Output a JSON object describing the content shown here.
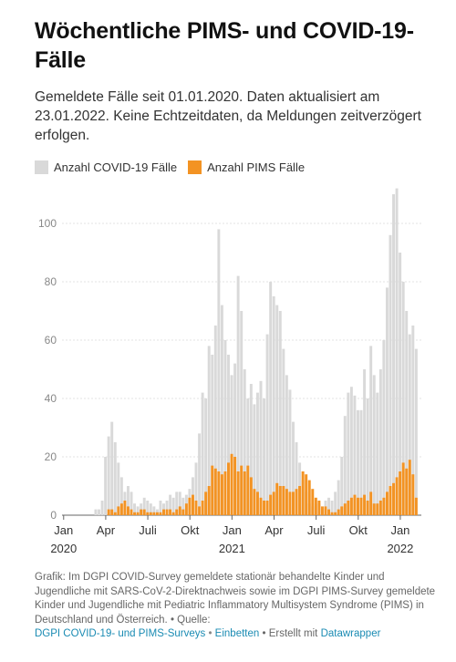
{
  "header": {
    "title": "Wöchentliche PIMS- und COVID-19-Fälle",
    "subtitle": "Gemeldete Fälle seit 01.01.2020. Daten aktualisiert am 23.01.2022. Keine Echtzeitdaten, da Meldungen zeitverzögert erfolgen."
  },
  "legend": [
    {
      "label": "Anzahl COVID-19 Fälle",
      "color": "#d9d9d9"
    },
    {
      "label": "Anzahl PIMS Fälle",
      "color": "#f39323"
    }
  ],
  "footer": {
    "text": "Grafik: Im DGPI COVID-Survey gemeldete stationär behandelte Kinder und Jugendliche mit SARS-CoV-2-Direktnachweis sowie im DGPI PIMS-Survey gemeldete Kinder und Jugendliche mit Pediatric Inflammatory Multisystem Syndrome (PIMS) in Deutschland und Österreich. • Quelle:",
    "source_link": "DGPI COVID-19- und PIMS-Surveys",
    "separator1": " • ",
    "embed_link": "Einbetten",
    "created_text": " • Erstellt mit ",
    "datawrapper_link": "Datawrapper"
  },
  "chart_data": {
    "type": "bar",
    "x_unit": "week",
    "x_start": "2020-01-06",
    "ylim": [
      0,
      110
    ],
    "yticks": [
      0,
      20,
      40,
      60,
      80,
      100
    ],
    "xticks": [
      {
        "label": "Jan",
        "year": "2020",
        "week": 0
      },
      {
        "label": "Apr",
        "year": "",
        "week": 13
      },
      {
        "label": "Juli",
        "year": "",
        "week": 26
      },
      {
        "label": "Okt",
        "year": "",
        "week": 39
      },
      {
        "label": "Jan",
        "year": "2021",
        "week": 52
      },
      {
        "label": "Apr",
        "year": "",
        "week": 65
      },
      {
        "label": "Juli",
        "year": "",
        "week": 78
      },
      {
        "label": "Okt",
        "year": "",
        "week": 91
      },
      {
        "label": "Jan",
        "year": "2022",
        "week": 104
      }
    ],
    "grid": true,
    "series": [
      {
        "name": "Anzahl COVID-19 Fälle",
        "color": "#d9d9d9",
        "values": [
          0,
          0,
          0,
          0,
          0,
          0,
          0,
          0,
          0,
          0,
          2,
          2,
          5,
          20,
          27,
          32,
          25,
          18,
          13,
          8,
          10,
          8,
          4,
          3,
          4,
          6,
          5,
          4,
          3,
          2,
          5,
          4,
          5,
          7,
          6,
          8,
          8,
          6,
          7,
          9,
          13,
          18,
          28,
          42,
          40,
          58,
          55,
          65,
          98,
          72,
          60,
          55,
          48,
          52,
          82,
          70,
          50,
          40,
          45,
          38,
          42,
          46,
          40,
          62,
          80,
          75,
          72,
          70,
          57,
          48,
          43,
          32,
          25,
          18,
          12,
          8,
          4,
          3,
          4,
          4,
          3,
          5,
          6,
          5,
          8,
          12,
          20,
          34,
          42,
          44,
          41,
          36,
          36,
          50,
          40,
          58,
          48,
          42,
          50,
          60,
          78,
          96,
          110,
          112,
          90,
          80,
          70,
          62,
          65,
          57
        ]
      },
      {
        "name": "Anzahl PIMS Fälle",
        "color": "#f39323",
        "values": [
          0,
          0,
          0,
          0,
          0,
          0,
          0,
          0,
          0,
          0,
          0,
          0,
          0,
          0,
          2,
          2,
          1,
          3,
          4,
          5,
          3,
          2,
          1,
          1,
          2,
          2,
          1,
          1,
          1,
          1,
          1,
          2,
          2,
          2,
          1,
          2,
          3,
          2,
          4,
          6,
          7,
          5,
          3,
          5,
          8,
          10,
          17,
          16,
          15,
          14,
          15,
          18,
          21,
          20,
          15,
          17,
          15,
          17,
          13,
          9,
          8,
          6,
          5,
          5,
          7,
          8,
          11,
          10,
          10,
          9,
          8,
          8,
          9,
          10,
          15,
          14,
          12,
          9,
          6,
          5,
          3,
          3,
          2,
          1,
          1,
          2,
          3,
          4,
          5,
          6,
          7,
          6,
          6,
          7,
          5,
          8,
          4,
          4,
          5,
          6,
          8,
          10,
          11,
          13,
          15,
          18,
          16,
          19,
          14,
          6
        ]
      }
    ]
  }
}
